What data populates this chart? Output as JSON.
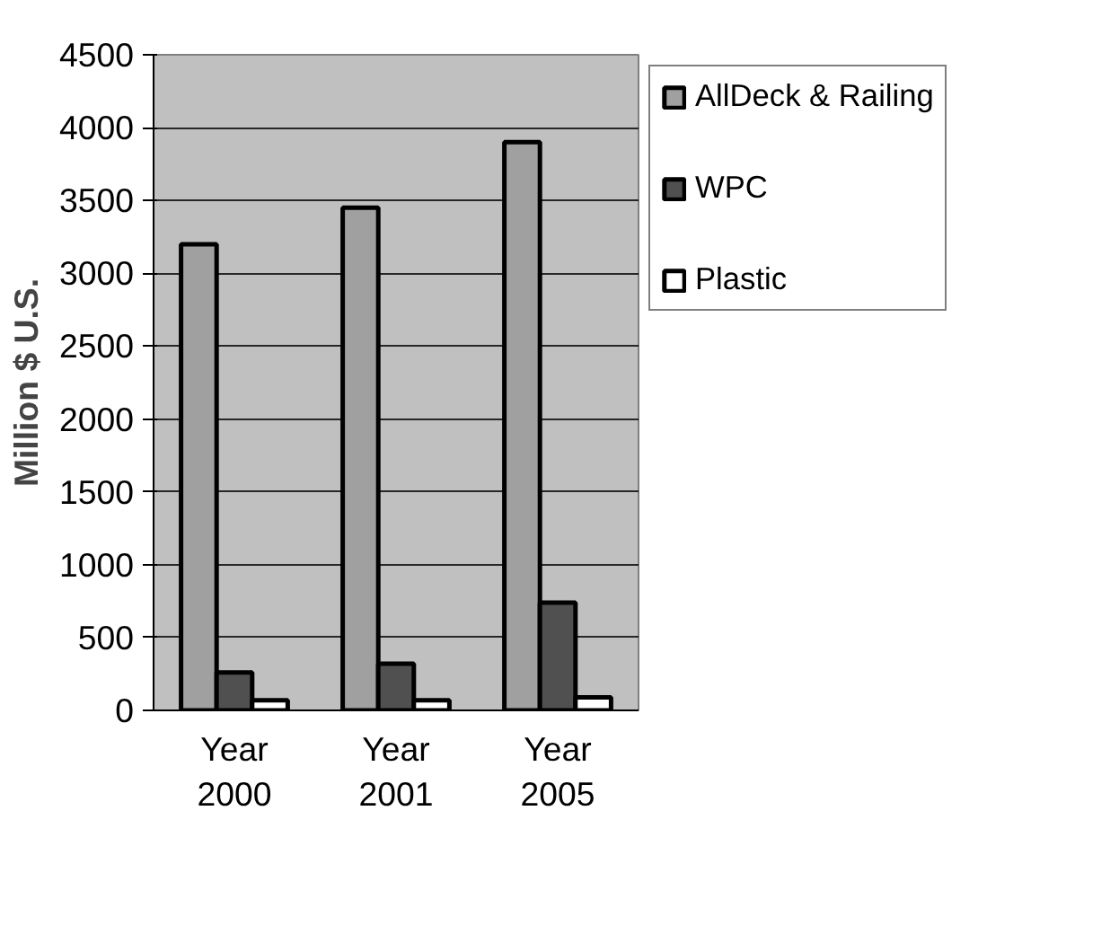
{
  "chart_data": {
    "type": "bar",
    "ylabel": "Million $ U.S.",
    "categories": [
      "Year 2000",
      "Year 2001",
      "Year 2005"
    ],
    "series": [
      {
        "name": "AllDeck & Railing",
        "color": "#a0a0a0",
        "values": [
          3200,
          3450,
          3900
        ]
      },
      {
        "name": "WPC",
        "color": "#505050",
        "values": [
          260,
          320,
          740
        ]
      },
      {
        "name": "Plastic",
        "color": "#ffffff",
        "values": [
          70,
          70,
          90
        ]
      }
    ],
    "ylim": [
      0,
      4500
    ],
    "yticks": [
      0,
      500,
      1000,
      1500,
      2000,
      2500,
      3000,
      3500,
      4000,
      4500
    ],
    "grid": "y",
    "legend": "right"
  }
}
